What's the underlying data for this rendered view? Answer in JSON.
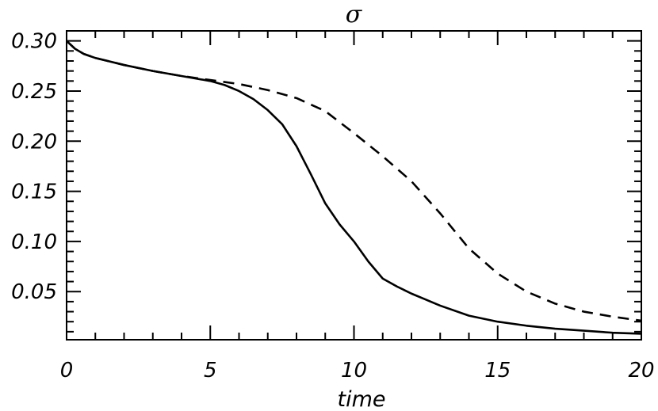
{
  "chart_data": {
    "type": "line",
    "title": "σ",
    "xlabel": "time",
    "ylabel": "",
    "xlim": [
      0,
      20
    ],
    "ylim": [
      0.002,
      0.31
    ],
    "grid": false,
    "legend": "none",
    "x_ticks": [
      0,
      5,
      10,
      15,
      20
    ],
    "x_tick_labels": [
      "0",
      "5",
      "10",
      "15",
      "20"
    ],
    "y_ticks": [
      0.05,
      0.1,
      0.15,
      0.2,
      0.25,
      0.3
    ],
    "y_tick_labels": [
      "0.05",
      "0.10",
      "0.15",
      "0.20",
      "0.25",
      "0.30"
    ],
    "series": [
      {
        "style": "solid",
        "color": "#000000",
        "x": [
          0,
          0.3,
          0.6,
          1,
          2,
          3,
          4,
          5,
          5.5,
          6,
          6.5,
          7,
          7.5,
          8,
          8.5,
          9,
          9.5,
          10,
          10.5,
          11,
          11.5,
          12,
          12.5,
          13,
          14,
          15,
          16,
          17,
          18,
          19,
          20
        ],
        "values": [
          0.3,
          0.292,
          0.287,
          0.283,
          0.276,
          0.27,
          0.265,
          0.26,
          0.256,
          0.25,
          0.242,
          0.231,
          0.217,
          0.195,
          0.167,
          0.138,
          0.117,
          0.1,
          0.08,
          0.063,
          0.055,
          0.048,
          0.042,
          0.036,
          0.026,
          0.02,
          0.016,
          0.013,
          0.011,
          0.009,
          0.008
        ]
      },
      {
        "style": "dashed",
        "color": "#000000",
        "x": [
          0,
          0.3,
          0.6,
          1,
          2,
          3,
          4,
          5,
          6,
          7,
          8,
          9,
          10,
          11,
          12,
          13,
          14,
          15,
          16,
          17,
          18,
          19,
          20
        ],
        "values": [
          0.3,
          0.292,
          0.287,
          0.283,
          0.276,
          0.27,
          0.265,
          0.261,
          0.257,
          0.251,
          0.243,
          0.23,
          0.208,
          0.185,
          0.16,
          0.128,
          0.093,
          0.068,
          0.05,
          0.038,
          0.03,
          0.025,
          0.021
        ]
      }
    ]
  }
}
